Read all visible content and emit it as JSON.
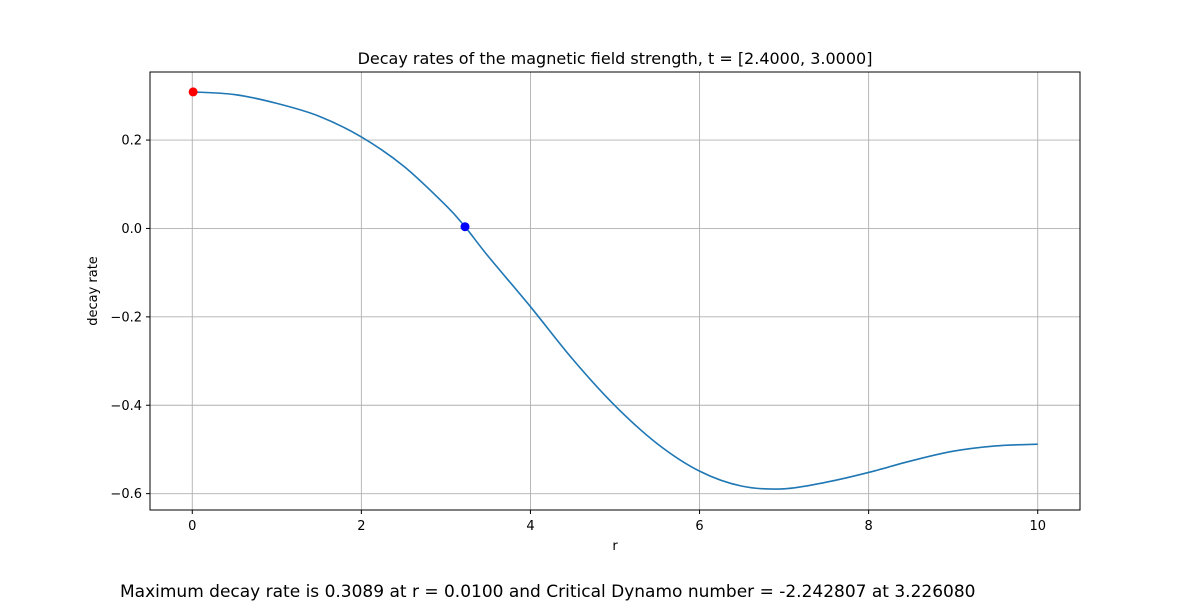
{
  "chart_data": {
    "type": "line",
    "title": "Decay rates of the magnetic field strength, t = [2.4000, 3.0000]",
    "xlabel": "r",
    "ylabel": "decay rate",
    "xlim": [
      -0.5,
      10.5
    ],
    "ylim": [
      -0.637,
      0.354
    ],
    "xticks": [
      0,
      2,
      4,
      6,
      8,
      10
    ],
    "xtick_labels": [
      "0",
      "2",
      "4",
      "6",
      "8",
      "10"
    ],
    "yticks": [
      -0.6,
      -0.4,
      -0.2,
      0.0,
      0.2
    ],
    "ytick_labels": [
      "−0.6",
      "−0.4",
      "−0.2",
      "0.0",
      "0.2"
    ],
    "grid": true,
    "series": [
      {
        "color": "#1f77b4",
        "x": [
          0.0,
          0.5,
          1.0,
          1.5,
          2.0,
          2.5,
          3.0,
          3.226,
          3.5,
          4.0,
          4.5,
          5.0,
          5.5,
          6.0,
          6.5,
          7.0,
          7.5,
          8.0,
          8.5,
          9.0,
          9.5,
          10.0
        ],
        "y": [
          0.309,
          0.303,
          0.283,
          0.254,
          0.207,
          0.141,
          0.052,
          0.004,
          -0.063,
          -0.177,
          -0.296,
          -0.401,
          -0.487,
          -0.549,
          -0.583,
          -0.589,
          -0.574,
          -0.552,
          -0.526,
          -0.504,
          -0.492,
          -0.488
        ]
      }
    ],
    "markers": [
      {
        "x": 0.01,
        "y": 0.3089,
        "color": "#ff0000"
      },
      {
        "x": 3.22608,
        "y": 0.004,
        "color": "#0000ff"
      }
    ]
  },
  "footer": {
    "text": "Maximum decay rate is 0.3089 at r = 0.0100 and Critical Dynamo number = -2.242807 at 3.226080"
  }
}
